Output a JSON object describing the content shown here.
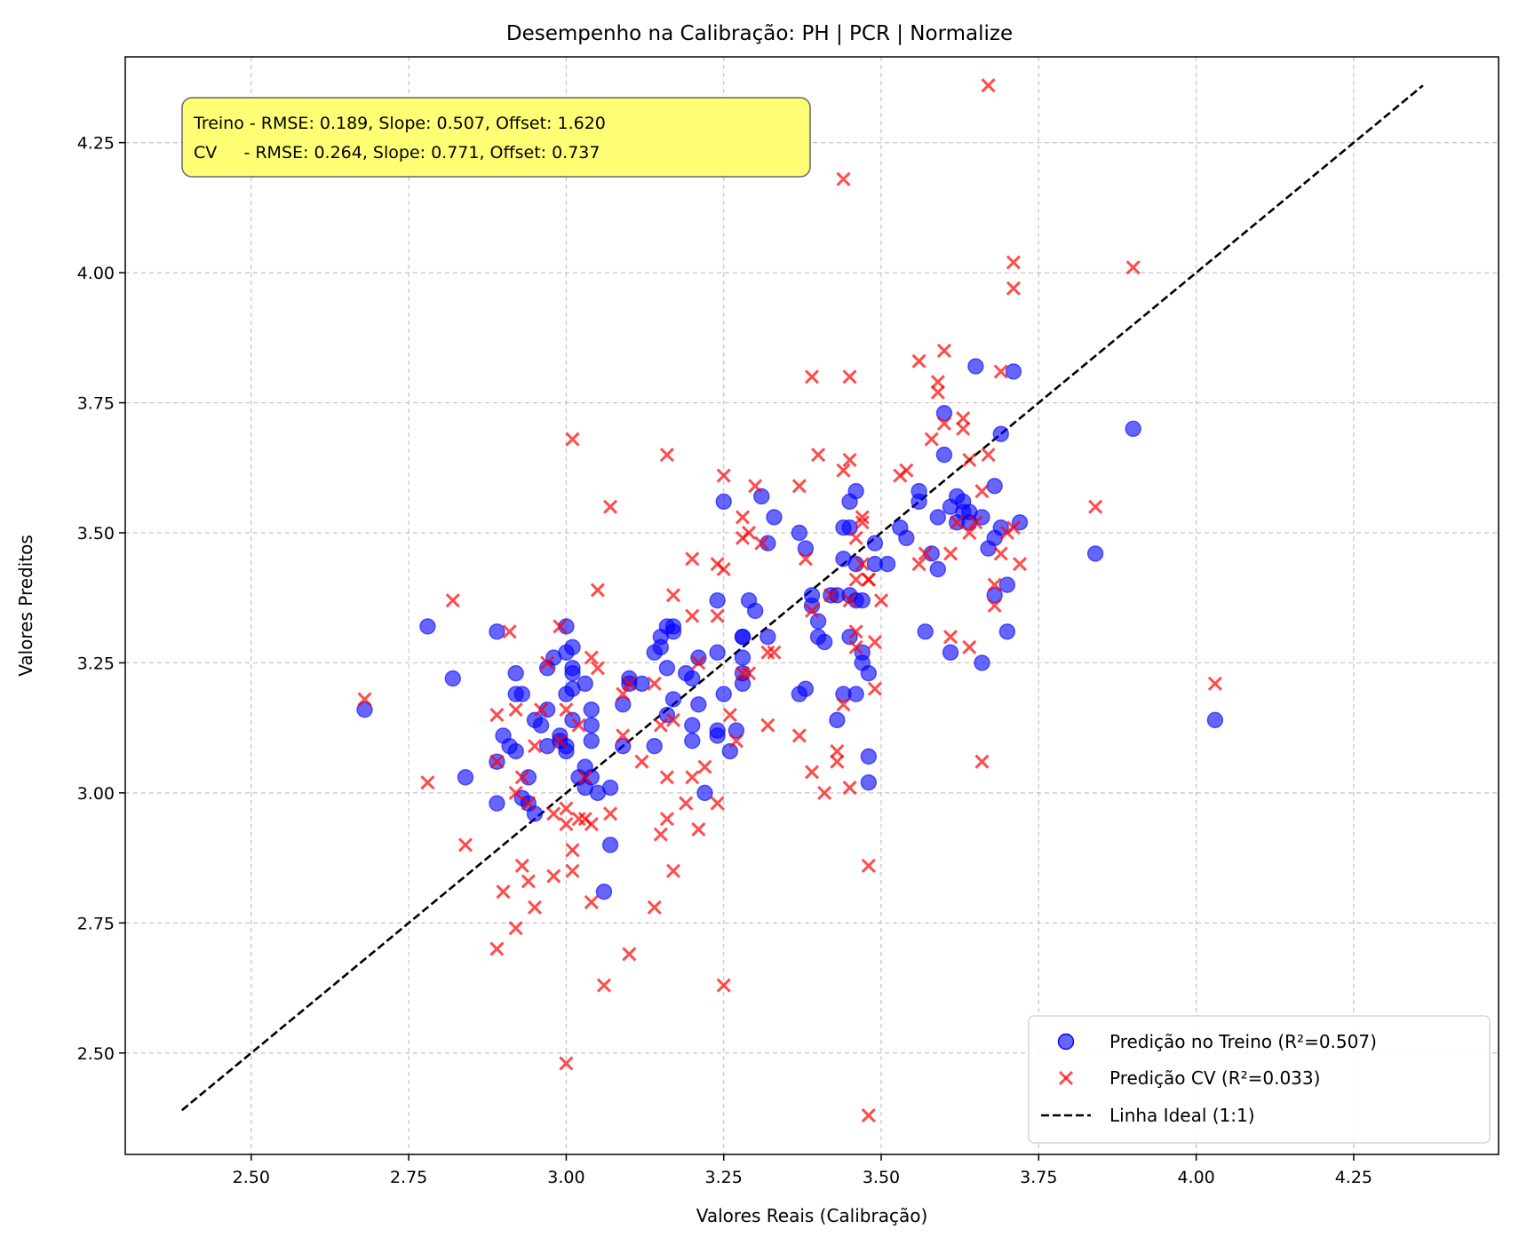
{
  "chart_data": {
    "type": "scatter",
    "title": "Desempenho na Calibração: PH | PCR | Normalize",
    "xlabel": "Valores Reais (Calibração)",
    "ylabel": "Valores Preditos",
    "xlim": [
      2.3,
      4.48
    ],
    "ylim": [
      2.305,
      4.415
    ],
    "xticks": [
      "2.50",
      "2.75",
      "3.00",
      "3.25",
      "3.50",
      "3.75",
      "4.00",
      "4.25"
    ],
    "yticks": [
      "2.50",
      "2.75",
      "3.00",
      "3.25",
      "3.50",
      "3.75",
      "4.00",
      "4.25"
    ],
    "grid": true,
    "legend_position": "lower-right",
    "metrics_box": {
      "line1": "Treino - RMSE: 0.189, Slope: 0.507, Offset: 1.620",
      "line2": "CV     - RMSE: 0.264, Slope: 0.771, Offset: 0.737",
      "background": "#ffff66"
    },
    "series": [
      {
        "name": "Predição no Treino (R²=0.507)",
        "marker": "circle",
        "color": "#0000ff",
        "points": [
          [
            2.68,
            3.16
          ],
          [
            2.78,
            3.32
          ],
          [
            2.82,
            3.22
          ],
          [
            2.84,
            3.03
          ],
          [
            2.89,
            3.06
          ],
          [
            2.89,
            2.98
          ],
          [
            2.89,
            3.31
          ],
          [
            2.9,
            3.11
          ],
          [
            2.91,
            3.09
          ],
          [
            2.92,
            3.23
          ],
          [
            2.92,
            3.19
          ],
          [
            2.92,
            3.08
          ],
          [
            2.93,
            3.19
          ],
          [
            2.93,
            2.99
          ],
          [
            2.94,
            3.03
          ],
          [
            2.94,
            2.98
          ],
          [
            2.95,
            2.96
          ],
          [
            2.95,
            3.14
          ],
          [
            2.96,
            3.13
          ],
          [
            2.97,
            3.16
          ],
          [
            2.97,
            3.09
          ],
          [
            2.97,
            3.24
          ],
          [
            2.98,
            3.26
          ],
          [
            2.99,
            3.11
          ],
          [
            2.99,
            3.1
          ],
          [
            3.0,
            3.32
          ],
          [
            3.0,
            3.27
          ],
          [
            3.0,
            3.19
          ],
          [
            3.0,
            3.09
          ],
          [
            3.0,
            3.08
          ],
          [
            3.01,
            3.28
          ],
          [
            3.01,
            3.24
          ],
          [
            3.01,
            3.23
          ],
          [
            3.01,
            3.2
          ],
          [
            3.01,
            3.14
          ],
          [
            3.02,
            3.03
          ],
          [
            3.03,
            3.21
          ],
          [
            3.03,
            3.01
          ],
          [
            3.03,
            3.05
          ],
          [
            3.04,
            3.16
          ],
          [
            3.04,
            3.13
          ],
          [
            3.04,
            3.1
          ],
          [
            3.04,
            3.03
          ],
          [
            3.05,
            3.0
          ],
          [
            3.06,
            2.81
          ],
          [
            3.07,
            3.01
          ],
          [
            3.07,
            2.9
          ],
          [
            3.09,
            3.09
          ],
          [
            3.09,
            3.17
          ],
          [
            3.1,
            3.22
          ],
          [
            3.1,
            3.21
          ],
          [
            3.12,
            3.21
          ],
          [
            3.14,
            3.27
          ],
          [
            3.14,
            3.09
          ],
          [
            3.15,
            3.3
          ],
          [
            3.15,
            3.28
          ],
          [
            3.16,
            3.32
          ],
          [
            3.16,
            3.24
          ],
          [
            3.16,
            3.15
          ],
          [
            3.17,
            3.31
          ],
          [
            3.17,
            3.32
          ],
          [
            3.17,
            3.18
          ],
          [
            3.19,
            3.23
          ],
          [
            3.2,
            3.22
          ],
          [
            3.2,
            3.13
          ],
          [
            3.2,
            3.1
          ],
          [
            3.21,
            3.26
          ],
          [
            3.21,
            3.17
          ],
          [
            3.22,
            3.0
          ],
          [
            3.24,
            3.37
          ],
          [
            3.24,
            3.27
          ],
          [
            3.24,
            3.11
          ],
          [
            3.24,
            3.12
          ],
          [
            3.25,
            3.56
          ],
          [
            3.25,
            3.19
          ],
          [
            3.26,
            3.08
          ],
          [
            3.27,
            3.12
          ],
          [
            3.28,
            3.3
          ],
          [
            3.28,
            3.26
          ],
          [
            3.28,
            3.3
          ],
          [
            3.28,
            3.21
          ],
          [
            3.28,
            3.23
          ],
          [
            3.29,
            3.37
          ],
          [
            3.3,
            3.35
          ],
          [
            3.31,
            3.57
          ],
          [
            3.32,
            3.3
          ],
          [
            3.32,
            3.48
          ],
          [
            3.33,
            3.53
          ],
          [
            3.37,
            3.5
          ],
          [
            3.37,
            3.19
          ],
          [
            3.38,
            3.47
          ],
          [
            3.38,
            3.2
          ],
          [
            3.39,
            3.38
          ],
          [
            3.39,
            3.36
          ],
          [
            3.4,
            3.3
          ],
          [
            3.4,
            3.33
          ],
          [
            3.41,
            3.29
          ],
          [
            3.42,
            3.38
          ],
          [
            3.43,
            3.38
          ],
          [
            3.43,
            3.14
          ],
          [
            3.44,
            3.51
          ],
          [
            3.44,
            3.45
          ],
          [
            3.44,
            3.19
          ],
          [
            3.45,
            3.56
          ],
          [
            3.45,
            3.38
          ],
          [
            3.45,
            3.3
          ],
          [
            3.45,
            3.51
          ],
          [
            3.46,
            3.58
          ],
          [
            3.46,
            3.19
          ],
          [
            3.46,
            3.37
          ],
          [
            3.46,
            3.44
          ],
          [
            3.47,
            3.27
          ],
          [
            3.47,
            3.25
          ],
          [
            3.47,
            3.37
          ],
          [
            3.48,
            3.23
          ],
          [
            3.48,
            3.07
          ],
          [
            3.48,
            3.02
          ],
          [
            3.49,
            3.48
          ],
          [
            3.49,
            3.44
          ],
          [
            3.51,
            3.44
          ],
          [
            3.53,
            3.51
          ],
          [
            3.54,
            3.49
          ],
          [
            3.56,
            3.58
          ],
          [
            3.56,
            3.56
          ],
          [
            3.57,
            3.31
          ],
          [
            3.58,
            3.46
          ],
          [
            3.59,
            3.53
          ],
          [
            3.59,
            3.43
          ],
          [
            3.6,
            3.73
          ],
          [
            3.6,
            3.65
          ],
          [
            3.61,
            3.55
          ],
          [
            3.61,
            3.27
          ],
          [
            3.62,
            3.52
          ],
          [
            3.62,
            3.57
          ],
          [
            3.63,
            3.54
          ],
          [
            3.63,
            3.56
          ],
          [
            3.64,
            3.54
          ],
          [
            3.64,
            3.52
          ],
          [
            3.65,
            3.82
          ],
          [
            3.66,
            3.25
          ],
          [
            3.66,
            3.53
          ],
          [
            3.67,
            3.47
          ],
          [
            3.68,
            3.38
          ],
          [
            3.68,
            3.59
          ],
          [
            3.68,
            3.49
          ],
          [
            3.69,
            3.51
          ],
          [
            3.69,
            3.69
          ],
          [
            3.7,
            3.4
          ],
          [
            3.7,
            3.31
          ],
          [
            3.71,
            3.81
          ],
          [
            3.72,
            3.52
          ],
          [
            3.84,
            3.46
          ],
          [
            3.9,
            3.7
          ],
          [
            4.03,
            3.14
          ]
        ]
      },
      {
        "name": "Predição CV (R²=0.033)",
        "marker": "x",
        "color": "#ff0000",
        "points": [
          [
            2.68,
            3.18
          ],
          [
            2.78,
            3.02
          ],
          [
            2.82,
            3.37
          ],
          [
            2.84,
            2.9
          ],
          [
            2.89,
            3.15
          ],
          [
            2.89,
            2.7
          ],
          [
            2.89,
            3.06
          ],
          [
            2.9,
            2.81
          ],
          [
            2.91,
            3.31
          ],
          [
            2.92,
            2.74
          ],
          [
            2.92,
            3.16
          ],
          [
            2.92,
            3.0
          ],
          [
            2.93,
            2.86
          ],
          [
            2.93,
            3.03
          ],
          [
            2.94,
            2.83
          ],
          [
            2.94,
            2.98
          ],
          [
            2.95,
            2.78
          ],
          [
            2.95,
            3.09
          ],
          [
            2.96,
            3.16
          ],
          [
            2.97,
            3.25
          ],
          [
            2.98,
            2.84
          ],
          [
            2.98,
            2.96
          ],
          [
            2.99,
            3.32
          ],
          [
            2.99,
            3.1
          ],
          [
            3.0,
            2.48
          ],
          [
            3.0,
            2.94
          ],
          [
            3.0,
            3.16
          ],
          [
            3.0,
            2.97
          ],
          [
            3.01,
            3.68
          ],
          [
            3.01,
            2.85
          ],
          [
            3.01,
            2.89
          ],
          [
            3.02,
            2.95
          ],
          [
            3.02,
            3.13
          ],
          [
            3.03,
            3.03
          ],
          [
            3.03,
            2.95
          ],
          [
            3.04,
            2.79
          ],
          [
            3.04,
            2.94
          ],
          [
            3.04,
            3.26
          ],
          [
            3.05,
            3.39
          ],
          [
            3.05,
            3.24
          ],
          [
            3.06,
            2.63
          ],
          [
            3.07,
            3.55
          ],
          [
            3.07,
            2.96
          ],
          [
            3.09,
            3.11
          ],
          [
            3.09,
            3.19
          ],
          [
            3.1,
            2.69
          ],
          [
            3.1,
            3.21
          ],
          [
            3.12,
            3.06
          ],
          [
            3.14,
            2.78
          ],
          [
            3.14,
            3.21
          ],
          [
            3.15,
            3.13
          ],
          [
            3.15,
            2.92
          ],
          [
            3.16,
            3.65
          ],
          [
            3.16,
            3.03
          ],
          [
            3.16,
            2.95
          ],
          [
            3.17,
            3.38
          ],
          [
            3.17,
            2.85
          ],
          [
            3.17,
            3.14
          ],
          [
            3.19,
            2.98
          ],
          [
            3.2,
            3.45
          ],
          [
            3.2,
            3.34
          ],
          [
            3.2,
            3.03
          ],
          [
            3.21,
            2.93
          ],
          [
            3.21,
            3.25
          ],
          [
            3.22,
            3.05
          ],
          [
            3.24,
            3.44
          ],
          [
            3.24,
            3.34
          ],
          [
            3.24,
            2.98
          ],
          [
            3.25,
            3.61
          ],
          [
            3.25,
            3.43
          ],
          [
            3.25,
            2.63
          ],
          [
            3.26,
            3.15
          ],
          [
            3.27,
            3.1
          ],
          [
            3.28,
            3.53
          ],
          [
            3.28,
            3.49
          ],
          [
            3.28,
            3.23
          ],
          [
            3.29,
            3.5
          ],
          [
            3.29,
            3.23
          ],
          [
            3.3,
            3.59
          ],
          [
            3.31,
            3.48
          ],
          [
            3.32,
            3.27
          ],
          [
            3.32,
            3.13
          ],
          [
            3.33,
            3.27
          ],
          [
            3.37,
            3.59
          ],
          [
            3.37,
            3.11
          ],
          [
            3.38,
            3.45
          ],
          [
            3.39,
            3.35
          ],
          [
            3.39,
            3.04
          ],
          [
            3.39,
            3.8
          ],
          [
            3.4,
            3.65
          ],
          [
            3.41,
            3.0
          ],
          [
            3.42,
            3.38
          ],
          [
            3.43,
            3.08
          ],
          [
            3.43,
            3.06
          ],
          [
            3.44,
            3.62
          ],
          [
            3.44,
            4.18
          ],
          [
            3.44,
            3.17
          ],
          [
            3.45,
            3.8
          ],
          [
            3.45,
            3.64
          ],
          [
            3.45,
            3.37
          ],
          [
            3.45,
            3.01
          ],
          [
            3.46,
            3.49
          ],
          [
            3.46,
            3.41
          ],
          [
            3.46,
            3.31
          ],
          [
            3.46,
            3.28
          ],
          [
            3.47,
            3.53
          ],
          [
            3.47,
            3.52
          ],
          [
            3.47,
            3.44
          ],
          [
            3.48,
            2.86
          ],
          [
            3.48,
            2.38
          ],
          [
            3.48,
            3.41
          ],
          [
            3.48,
            3.41
          ],
          [
            3.49,
            3.29
          ],
          [
            3.49,
            3.2
          ],
          [
            3.5,
            3.37
          ],
          [
            3.53,
            3.61
          ],
          [
            3.54,
            3.62
          ],
          [
            3.56,
            3.44
          ],
          [
            3.56,
            3.83
          ],
          [
            3.57,
            3.46
          ],
          [
            3.58,
            3.68
          ],
          [
            3.59,
            3.77
          ],
          [
            3.59,
            3.79
          ],
          [
            3.6,
            3.71
          ],
          [
            3.6,
            3.85
          ],
          [
            3.61,
            3.46
          ],
          [
            3.61,
            3.3
          ],
          [
            3.62,
            3.52
          ],
          [
            3.63,
            3.7
          ],
          [
            3.63,
            3.72
          ],
          [
            3.64,
            3.64
          ],
          [
            3.64,
            3.28
          ],
          [
            3.64,
            3.5
          ],
          [
            3.65,
            3.52
          ],
          [
            3.66,
            3.58
          ],
          [
            3.66,
            3.06
          ],
          [
            3.67,
            3.65
          ],
          [
            3.67,
            4.36
          ],
          [
            3.68,
            3.4
          ],
          [
            3.68,
            3.36
          ],
          [
            3.69,
            3.46
          ],
          [
            3.69,
            3.81
          ],
          [
            3.7,
            3.5
          ],
          [
            3.71,
            4.02
          ],
          [
            3.71,
            3.97
          ],
          [
            3.71,
            3.51
          ],
          [
            3.72,
            3.44
          ],
          [
            3.84,
            3.55
          ],
          [
            3.9,
            4.01
          ],
          [
            4.03,
            3.21
          ]
        ]
      },
      {
        "name": "Linha Ideal (1:1)",
        "marker": "dashed-line",
        "color": "#000000",
        "points": [
          [
            2.39,
            2.39
          ],
          [
            4.36,
            4.36
          ]
        ]
      }
    ]
  }
}
